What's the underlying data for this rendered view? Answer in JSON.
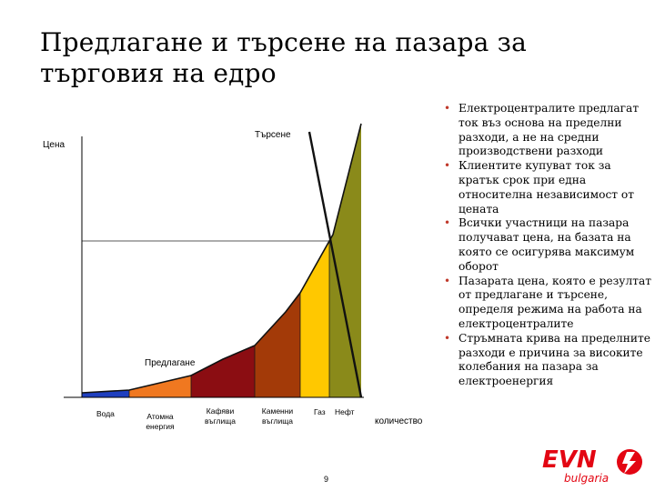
{
  "title": "Предлагане и търсене на пазара за търговия на едро",
  "chart": {
    "y_label": "Цена",
    "x_label": "количество",
    "demand_label": "Търсене",
    "supply_label": "Предлагане",
    "categories": [
      "Вода",
      "Атомна енергия",
      "Кафяви въглища",
      "Каменни въглища",
      "Газ",
      "Нефт"
    ],
    "colors": {
      "water": "#1f3fbf",
      "nuclear": "#f07820",
      "brown_coal": "#8b0d12",
      "hard_coal": "#a33a08",
      "gas": "#ffc800",
      "oil": "#8a8a1a"
    }
  },
  "bullets": [
    "Електроцентралите предлагат ток въз основа на пределни разходи, а не на средни производствени разходи",
    "Клиентите купуват ток за кратък срок при една относителна независимост от цената",
    "Всички участници на пазара получават цена, на базата на която се осигурява максимум оборот",
    "Пазарата цена, която е резултат от предлагане и търсене, определя режима на работа на електроцентралите",
    "Стръмната крива на пределните разходи е причина за високите колебания на пазара за електроенергия"
  ],
  "page_number": "9",
  "logo": {
    "text_main": "EVN",
    "text_sub": "bulgaria",
    "brand_color": "#e30613"
  }
}
